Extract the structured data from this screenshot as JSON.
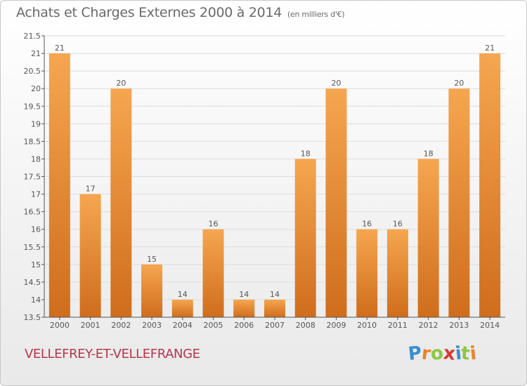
{
  "header": {
    "title": "Achats et Charges Externes 2000 à 2014",
    "subtitle": "(en milliers d'€)"
  },
  "footer": {
    "commune": "VELLEFREY-ET-VELLEFRANGE",
    "brand_letters": [
      "P",
      "r",
      "o",
      "x",
      "i",
      "t",
      "i"
    ],
    "brand_colors": [
      "#3a8fd0",
      "#e8842a",
      "#8dc63f",
      "#d63a2f",
      "#3a8fd0",
      "#8dc63f",
      "#e8842a"
    ]
  },
  "colors": {
    "bar_light": "#f6a650",
    "bar_dark": "#cf6d1c",
    "grid": "#dcdcdc",
    "axis": "#555555",
    "text": "#555555"
  },
  "chart_data": {
    "type": "bar",
    "title": "Achats et Charges Externes 2000 à 2014",
    "subtitle": "(en milliers d'€)",
    "xlabel": "",
    "ylabel": "",
    "categories": [
      "2000",
      "2001",
      "2002",
      "2003",
      "2004",
      "2005",
      "2006",
      "2007",
      "2008",
      "2009",
      "2010",
      "2011",
      "2012",
      "2013",
      "2014"
    ],
    "values": [
      21,
      17,
      20,
      15,
      14,
      16,
      14,
      14,
      18,
      20,
      16,
      16,
      18,
      20,
      21
    ],
    "data_labels": [
      "21",
      "17",
      "20",
      "15",
      "14",
      "16",
      "14",
      "14",
      "18",
      "20",
      "16",
      "16",
      "18",
      "20",
      "21"
    ],
    "ylim": [
      13.5,
      21.5
    ],
    "yticks": [
      "13.5",
      "14",
      "14.5",
      "15",
      "15.5",
      "16",
      "16.5",
      "17",
      "17.5",
      "18",
      "18.5",
      "19",
      "19.5",
      "20",
      "20.5",
      "21",
      "21.5"
    ],
    "grid": true,
    "legend": "none"
  }
}
